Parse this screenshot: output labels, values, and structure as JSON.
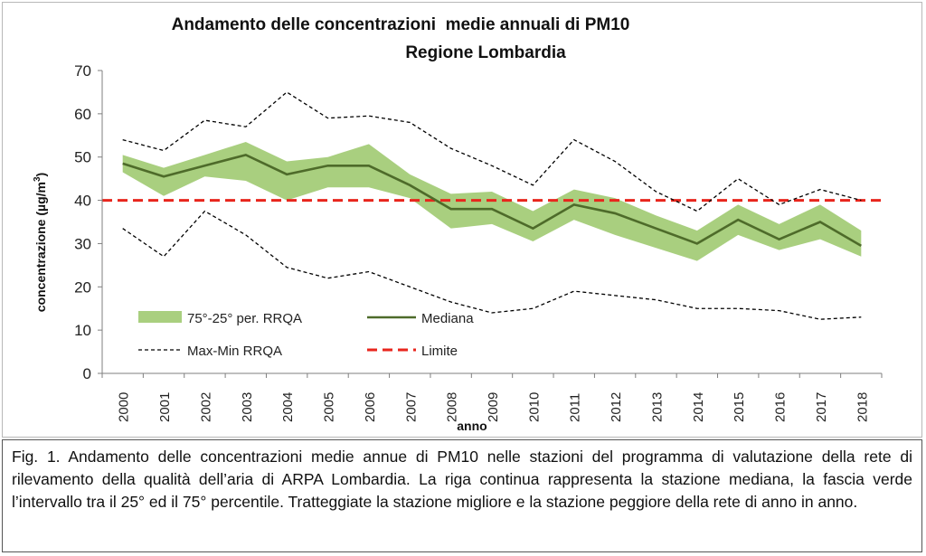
{
  "chart_data": {
    "type": "line",
    "title": "Andamento delle concentrazioni  medie annuali di PM10",
    "subtitle": "Regione Lombardia",
    "xlabel": "anno",
    "ylabel": "concentrazione (µg/m",
    "ylabel_sup": "3",
    "ylabel_close": ")",
    "ylim": [
      0,
      70
    ],
    "yticks": [
      0,
      10,
      20,
      30,
      40,
      50,
      60,
      70
    ],
    "grid": false,
    "legend_position": "bottom-left",
    "categories": [
      "2000",
      "2001",
      "2002",
      "2003",
      "2004",
      "2005",
      "2006",
      "2007",
      "2008",
      "2009",
      "2010",
      "2011",
      "2012",
      "2013",
      "2014",
      "2015",
      "2016",
      "2017",
      "2018"
    ],
    "series": [
      {
        "name": "75°-25° per. RRQA",
        "kind": "band",
        "color": "#a9cf7f",
        "upper": [
          50.5,
          47.5,
          50.5,
          53.5,
          49.0,
          50.0,
          53.0,
          46.0,
          41.5,
          42.0,
          37.5,
          42.5,
          40.5,
          36.5,
          33.0,
          39.0,
          34.5,
          39.0,
          33.0
        ],
        "lower": [
          46.5,
          41.0,
          45.5,
          44.5,
          40.0,
          43.0,
          43.0,
          40.5,
          33.5,
          34.5,
          30.5,
          35.5,
          32.0,
          29.0,
          26.0,
          32.0,
          28.5,
          31.0,
          27.0
        ]
      },
      {
        "name": "Mediana",
        "kind": "line",
        "color": "#4e6b2a",
        "values": [
          48.5,
          45.5,
          48.0,
          50.5,
          46.0,
          48.0,
          48.0,
          43.5,
          38.0,
          38.0,
          33.5,
          39.0,
          37.0,
          33.5,
          30.0,
          35.5,
          31.0,
          35.0,
          29.5
        ]
      },
      {
        "name": "Max-Min RRQA",
        "kind": "dashed-pair",
        "color": "#000000",
        "max": [
          54.0,
          51.5,
          58.5,
          57.0,
          65.0,
          59.0,
          59.5,
          58.0,
          52.0,
          48.0,
          43.5,
          54.0,
          49.0,
          42.0,
          37.5,
          45.0,
          39.0,
          42.5,
          40.0
        ],
        "min": [
          33.5,
          27.0,
          37.5,
          32.0,
          24.5,
          22.0,
          23.5,
          20.0,
          16.5,
          14.0,
          15.0,
          19.0,
          18.0,
          17.0,
          15.0,
          15.0,
          14.5,
          12.5,
          13.0
        ]
      },
      {
        "name": "Limite",
        "kind": "hline",
        "color": "#e8261d",
        "value": 40
      }
    ]
  },
  "caption": "Fig. 1. Andamento delle concentrazioni medie annue di PM10 nelle stazioni del programma di valutazione della rete di rilevamento della qualità dell’aria di ARPA Lombardia. La riga continua rappresenta la stazione mediana, la fascia verde l’intervallo tra il 25° ed il 75° percentile. Tratteggiate la stazione migliore e la stazione peggiore della rete di anno in anno."
}
